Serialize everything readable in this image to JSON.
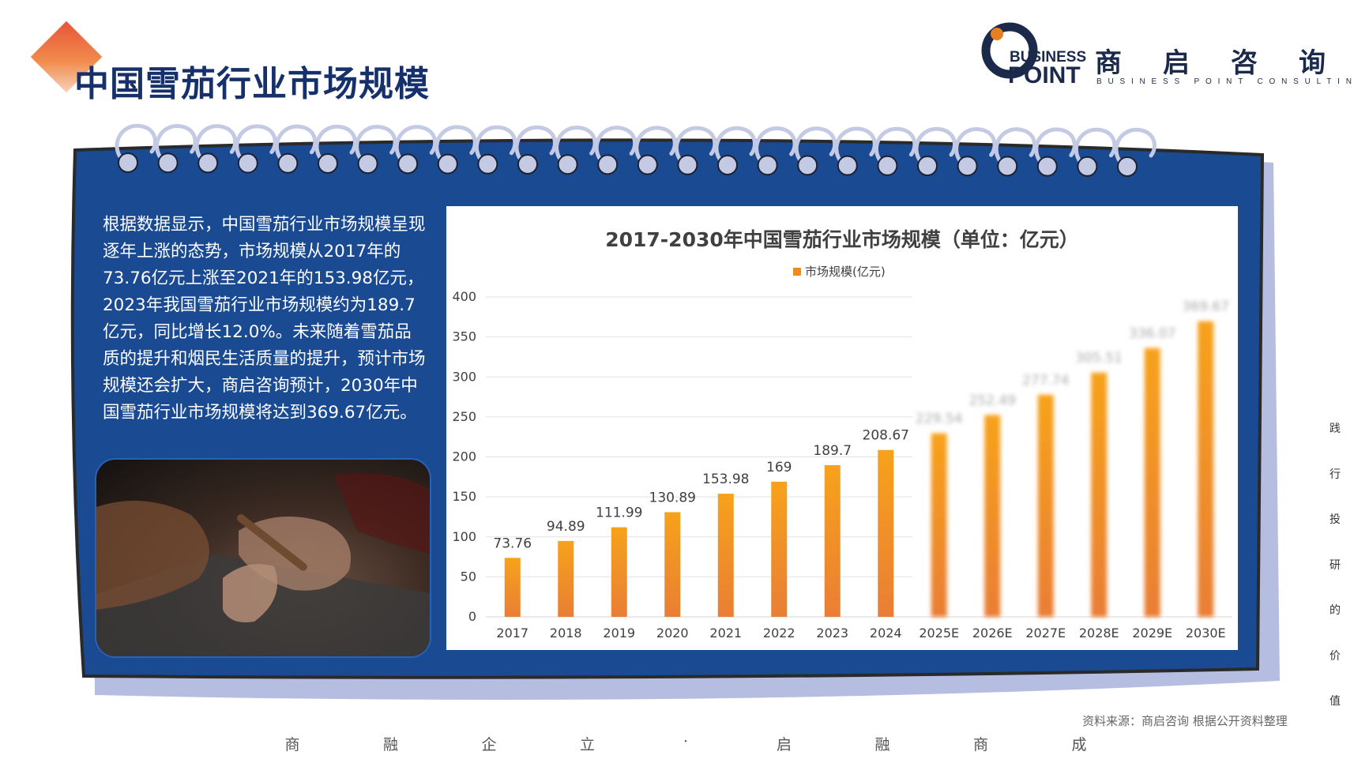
{
  "page_title": "中国雪茄行业市场规模",
  "brand": {
    "en_line1": "BUSINESS",
    "en_line2": "POINT",
    "cn_name": [
      "商",
      "启",
      "咨",
      "询"
    ],
    "tagline": "BUSINESS POINT CONSULTING",
    "colors": {
      "orange": "#e67e22",
      "navy": "#1b2a4a"
    }
  },
  "description": "根据数据显示，中国雪茄行业市场规模呈现逐年上涨的态势，市场规模从2017年的73.76亿元上涨至2021年的153.98亿元，2023年我国雪茄行业市场规模约为189.7亿元，同比增长12.0%。未来随着雪茄品质的提升和烟民生活质量的提升，预计市场规模还会扩大，商启咨询预计，2030年中国雪茄行业市场规模将达到369.67亿元。",
  "photo_icon": "cigar-rolling-photo",
  "chart_data": {
    "type": "bar",
    "title": "2017-2030年中国雪茄行业市场规模（单位：亿元）",
    "legend": "市场规模(亿元)",
    "legend_position": "top-center",
    "categories": [
      "2017",
      "2018",
      "2019",
      "2020",
      "2021",
      "2022",
      "2023",
      "2024",
      "2025E",
      "2026E",
      "2027E",
      "2028E",
      "2029E",
      "2030E"
    ],
    "values": [
      73.76,
      94.89,
      111.99,
      130.89,
      153.98,
      169,
      189.7,
      208.67,
      229.54,
      252.49,
      277.74,
      305.51,
      336.07,
      369.67
    ],
    "labels": [
      "73.76",
      "94.89",
      "111.99",
      "130.89",
      "153.98",
      "169",
      "189.7",
      "208.67",
      "229.54",
      "252.49",
      "277.74",
      "305.51",
      "336.07",
      "369.67"
    ],
    "forecast_categories": [
      "2025E",
      "2026E",
      "2027E",
      "2028E",
      "2029E",
      "2030E"
    ],
    "ylim": [
      0,
      400
    ],
    "yticks": [
      0,
      50,
      100,
      150,
      200,
      250,
      300,
      350,
      400
    ],
    "grid": true,
    "colors": {
      "bar_top": "#f7a21b",
      "bar_bottom": "#e97e35"
    }
  },
  "colors": {
    "board": "#194a92",
    "board_edge": "#2a2a2a",
    "ring": "#c5cae4",
    "title": "#15306b"
  },
  "vertical_motto": [
    "践",
    "行",
    "投",
    "研",
    "的",
    "价",
    "值"
  ],
  "source_note": "资料来源：商启咨询 根据公开资料整理",
  "bottom_motto": [
    "商",
    "融",
    "企",
    "立",
    "·",
    "启",
    "融",
    "商",
    "成"
  ]
}
